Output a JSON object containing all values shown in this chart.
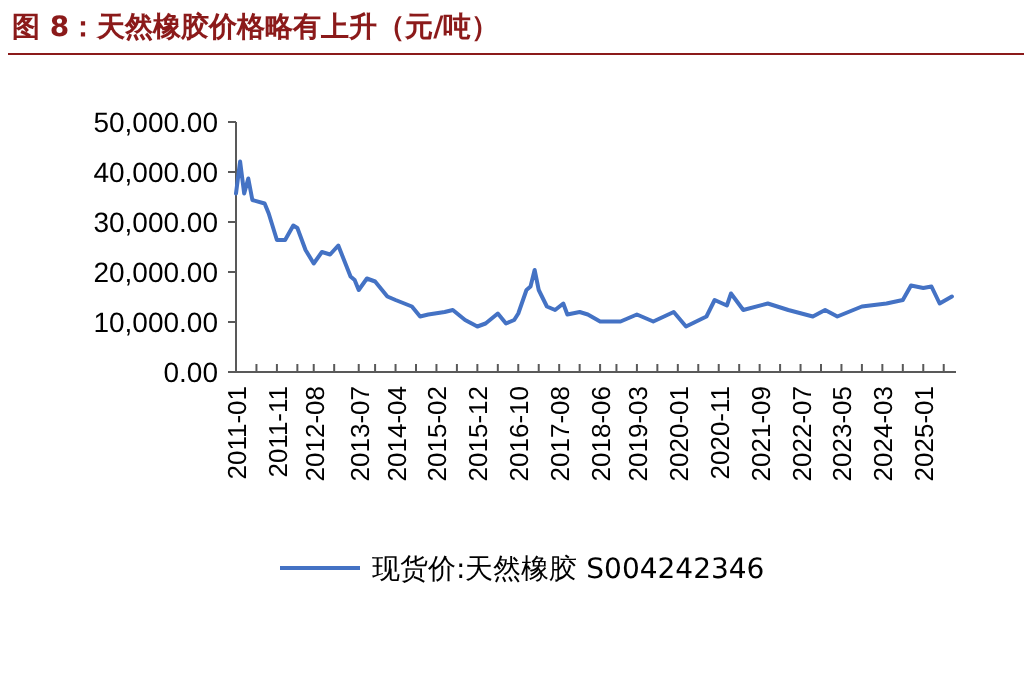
{
  "chart_data": {
    "type": "line",
    "title": "图 8：天然橡胶价格略有上升（元/吨）",
    "x": [
      "2011-01",
      "2011-02",
      "2011-03",
      "2011-04",
      "2011-05",
      "2011-08",
      "2011-09",
      "2011-11",
      "2012-01",
      "2012-03",
      "2012-04",
      "2012-06",
      "2012-08",
      "2012-10",
      "2012-12",
      "2013-02",
      "2013-05",
      "2013-06",
      "2013-07",
      "2013-09",
      "2013-11",
      "2014-02",
      "2014-04",
      "2014-08",
      "2014-10",
      "2014-12",
      "2015-04",
      "2015-06",
      "2015-09",
      "2015-12",
      "2016-02",
      "2016-05",
      "2016-07",
      "2016-09",
      "2016-10",
      "2016-12",
      "2017-01",
      "2017-02",
      "2017-03",
      "2017-05",
      "2017-07",
      "2017-09",
      "2017-10",
      "2018-01",
      "2018-03",
      "2018-06",
      "2018-11",
      "2019-03",
      "2019-07",
      "2019-12",
      "2020-03",
      "2020-08",
      "2020-10",
      "2021-01",
      "2021-02",
      "2021-05",
      "2021-11",
      "2022-04",
      "2022-10",
      "2023-01",
      "2023-04",
      "2023-10",
      "2024-04",
      "2024-08",
      "2024-10",
      "2025-01",
      "2025-03",
      "2025-05",
      "2025-08"
    ],
    "series": [
      {
        "name": "现货价:天然橡胶 S004242346",
        "color": "#4472c4",
        "values": [
          35700,
          42100,
          35700,
          38700,
          34400,
          33700,
          31700,
          26400,
          26400,
          29300,
          28800,
          24400,
          21700,
          24000,
          23500,
          25300,
          19100,
          18400,
          16400,
          18700,
          18100,
          15100,
          14400,
          13100,
          11100,
          11500,
          12000,
          12400,
          10400,
          9100,
          9700,
          11700,
          9700,
          10400,
          11700,
          16400,
          17100,
          20400,
          16400,
          13100,
          12400,
          13700,
          11500,
          12000,
          11500,
          10100,
          10100,
          11500,
          10100,
          12000,
          9100,
          11100,
          14400,
          13300,
          15700,
          12400,
          13700,
          12400,
          11100,
          12400,
          11100,
          13100,
          13700,
          14400,
          17300,
          16800,
          17100,
          13700,
          15100
        ]
      }
    ],
    "xlim": [
      "2011-01",
      "2025-09"
    ],
    "xticks": [
      {
        "value": "2011-01",
        "label": "2011-01"
      },
      {
        "value": "2011-06",
        "label": null
      },
      {
        "value": "2011-11",
        "label": "2011-11"
      },
      {
        "value": "2012-04",
        "label": null
      },
      {
        "value": "2012-08",
        "label": "2012-08"
      },
      {
        "value": "2013-01",
        "label": null
      },
      {
        "value": "2013-07",
        "label": "2013-07"
      },
      {
        "value": "2013-11",
        "label": null
      },
      {
        "value": "2014-04",
        "label": "2014-04"
      },
      {
        "value": "2014-09",
        "label": null
      },
      {
        "value": "2015-02",
        "label": "2015-02"
      },
      {
        "value": "2015-07",
        "label": null
      },
      {
        "value": "2015-12",
        "label": "2015-12"
      },
      {
        "value": "2016-05",
        "label": null
      },
      {
        "value": "2016-10",
        "label": "2016-10"
      },
      {
        "value": "2017-03",
        "label": null
      },
      {
        "value": "2017-08",
        "label": "2017-08"
      },
      {
        "value": "2018-01",
        "label": null
      },
      {
        "value": "2018-06",
        "label": "2018-06"
      },
      {
        "value": "2018-10",
        "label": null
      },
      {
        "value": "2019-03",
        "label": "2019-03"
      },
      {
        "value": "2019-08",
        "label": null
      },
      {
        "value": "2020-01",
        "label": "2020-01"
      },
      {
        "value": "2020-06",
        "label": null
      },
      {
        "value": "2020-11",
        "label": "2020-11"
      },
      {
        "value": "2021-04",
        "label": null
      },
      {
        "value": "2021-09",
        "label": "2021-09"
      },
      {
        "value": "2022-02",
        "label": null
      },
      {
        "value": "2022-07",
        "label": "2022-07"
      },
      {
        "value": "2022-12",
        "label": null
      },
      {
        "value": "2023-05",
        "label": "2023-05"
      },
      {
        "value": "2023-10",
        "label": null
      },
      {
        "value": "2024-03",
        "label": "2024-03"
      },
      {
        "value": "2024-08",
        "label": null
      },
      {
        "value": "2025-01",
        "label": "2025-01"
      },
      {
        "value": "2025-06",
        "label": null
      }
    ],
    "ylim": [
      0,
      50000
    ],
    "yticks": [
      {
        "value": 0,
        "label": "0.00"
      },
      {
        "value": 10000,
        "label": "10,000.00"
      },
      {
        "value": 20000,
        "label": "20,000.00"
      },
      {
        "value": 30000,
        "label": "30,000.00"
      },
      {
        "value": 40000,
        "label": "40,000.00"
      },
      {
        "value": 50000,
        "label": "50,000.00"
      }
    ],
    "grid": false,
    "legend": "bottom",
    "marker": "none",
    "line_style": "solid"
  }
}
